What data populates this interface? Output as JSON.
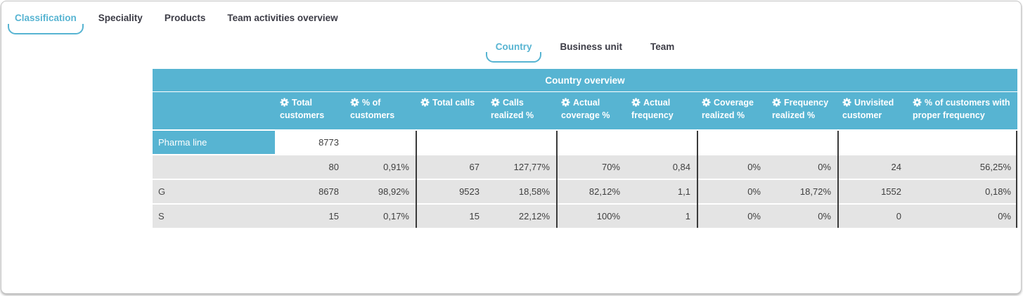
{
  "main_tabs": [
    {
      "label": "Classification",
      "active": true
    },
    {
      "label": "Speciality",
      "active": false
    },
    {
      "label": "Products",
      "active": false
    },
    {
      "label": "Team activities overview",
      "active": false
    }
  ],
  "sub_tabs": [
    {
      "label": "Country",
      "active": true
    },
    {
      "label": "Business unit",
      "active": false
    },
    {
      "label": "Team",
      "active": false
    }
  ],
  "table": {
    "title": "Country overview",
    "columns": [
      {
        "label": "Total customers",
        "icon": "gear-icon"
      },
      {
        "label": "% of customers",
        "icon": "gear-icon"
      },
      {
        "label": "Total calls",
        "icon": "gear-icon"
      },
      {
        "label": "Calls realized %",
        "icon": "gear-icon"
      },
      {
        "label": "Actual coverage %",
        "icon": "gear-icon"
      },
      {
        "label": "Actual frequency",
        "icon": "gear-icon"
      },
      {
        "label": "Coverage realized %",
        "icon": "gear-icon"
      },
      {
        "label": "Frequency realized %",
        "icon": "gear-icon"
      },
      {
        "label": "Unvisited customer",
        "icon": "gear-icon"
      },
      {
        "label": "% of customers with proper frequency",
        "icon": "gear-icon"
      }
    ],
    "rows": [
      {
        "label": "Pharma line",
        "group": true,
        "values": [
          "8773",
          "",
          "",
          "",
          "",
          "",
          "",
          "",
          "",
          ""
        ]
      },
      {
        "label": "",
        "group": false,
        "values": [
          "80",
          "0,91%",
          "67",
          "127,77%",
          "70%",
          "0,84",
          "0%",
          "0%",
          "24",
          "56,25%"
        ]
      },
      {
        "label": "G",
        "group": false,
        "values": [
          "8678",
          "98,92%",
          "9523",
          "18,58%",
          "82,12%",
          "1,1",
          "0%",
          "18,72%",
          "1552",
          "0,18%"
        ]
      },
      {
        "label": "S",
        "group": false,
        "values": [
          "15",
          "0,17%",
          "15",
          "22,12%",
          "100%",
          "1",
          "0%",
          "0%",
          "0",
          "0%"
        ]
      }
    ]
  },
  "colors": {
    "accent": "#57b4d2",
    "row_gray": "#e4e4e4",
    "divider": "#3a3a3a",
    "text": "#404040",
    "tab_text": "#3c3c46"
  }
}
